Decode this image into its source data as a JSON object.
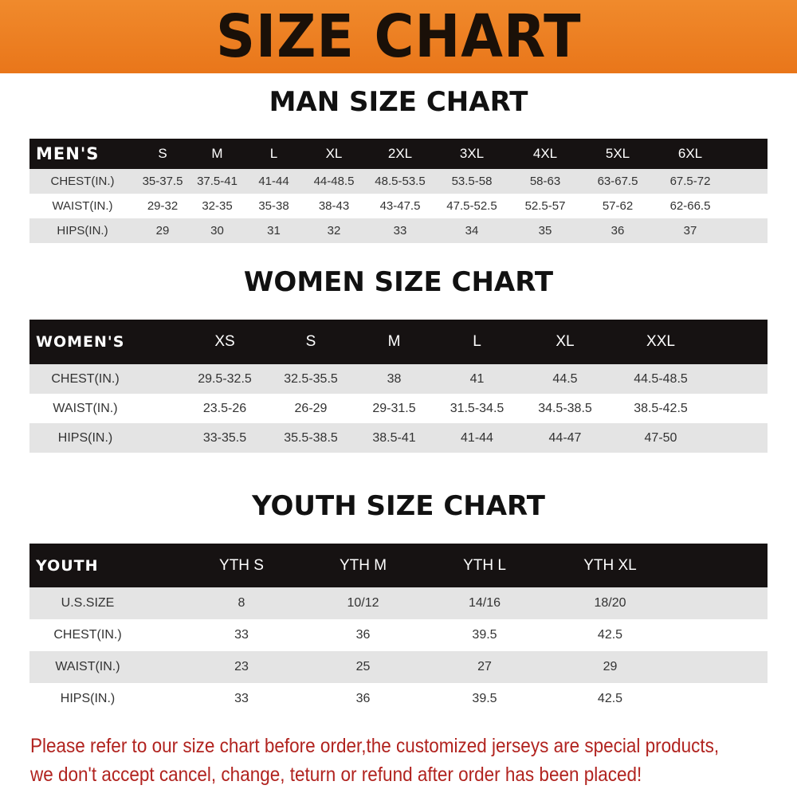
{
  "title": "SIZE CHART",
  "colors": {
    "banner": "#ee8023",
    "header_row": "#161212",
    "stripe": "#e4e4e4",
    "note_text": "#b1231f"
  },
  "men": {
    "title": "MAN SIZE CHART",
    "header": "MEN'S",
    "columns": [
      "S",
      "M",
      "L",
      "XL",
      "2XL",
      "3XL",
      "4XL",
      "5XL",
      "6XL"
    ],
    "rows": [
      {
        "label": "CHEST(IN.)",
        "values": [
          "35-37.5",
          "37.5-41",
          "41-44",
          "44-48.5",
          "48.5-53.5",
          "53.5-58",
          "58-63",
          "63-67.5",
          "67.5-72"
        ]
      },
      {
        "label": "WAIST(IN.)",
        "values": [
          "29-32",
          "32-35",
          "35-38",
          "38-43",
          "43-47.5",
          "47.5-52.5",
          "52.5-57",
          "57-62",
          "62-66.5"
        ]
      },
      {
        "label": "HIPS(IN.)",
        "values": [
          "29",
          "30",
          "31",
          "32",
          "33",
          "34",
          "35",
          "36",
          "37"
        ]
      }
    ]
  },
  "women": {
    "title": "WOMEN SIZE CHART",
    "header": "WOMEN'S",
    "columns": [
      "XS",
      "S",
      "M",
      "L",
      "XL",
      "XXL"
    ],
    "rows": [
      {
        "label": "CHEST(IN.)",
        "values": [
          "29.5-32.5",
          "32.5-35.5",
          "38",
          "41",
          "44.5",
          "44.5-48.5"
        ]
      },
      {
        "label": "WAIST(IN.)",
        "values": [
          "23.5-26",
          "26-29",
          "29-31.5",
          "31.5-34.5",
          "34.5-38.5",
          "38.5-42.5"
        ]
      },
      {
        "label": "HIPS(IN.)",
        "values": [
          "33-35.5",
          "35.5-38.5",
          "38.5-41",
          "41-44",
          "44-47",
          "47-50"
        ]
      }
    ]
  },
  "youth": {
    "title": "YOUTH SIZE CHART",
    "header": "YOUTH",
    "columns": [
      "YTH S",
      "YTH M",
      "YTH L",
      "YTH XL"
    ],
    "rows": [
      {
        "label": "U.S.SIZE",
        "values": [
          "8",
          "10/12",
          "14/16",
          "18/20"
        ]
      },
      {
        "label": "CHEST(IN.)",
        "values": [
          "33",
          "36",
          "39.5",
          "42.5"
        ]
      },
      {
        "label": "WAIST(IN.)",
        "values": [
          "23",
          "25",
          "27",
          "29"
        ]
      },
      {
        "label": "HIPS(IN.)",
        "values": [
          "33",
          "36",
          "39.5",
          "42.5"
        ]
      }
    ]
  },
  "note": {
    "line1": "Please refer to our size chart before order,the customized jerseys are special products,",
    "line2": "we don't accept cancel, change, teturn or refund after order has been placed!"
  }
}
